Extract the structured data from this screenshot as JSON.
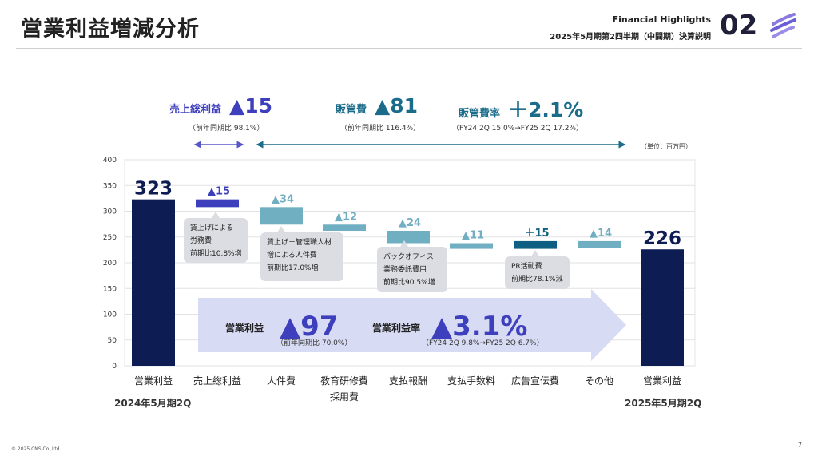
{
  "header": {
    "title": "営業利益増減分析",
    "en_label": "Financial Highlights",
    "jp_label": "2025年5月期第2四半期（中間期）決算説明",
    "section_number": "02"
  },
  "summary": {
    "gross_profit": {
      "label": "売上総利益",
      "value": "▲15",
      "sub": "（前年同期比 98.1%）",
      "color": "#3e3fbd"
    },
    "sga": {
      "label": "販管費",
      "value": "▲81",
      "sub": "（前年同期比 116.4%）",
      "color": "#1b6c8a"
    },
    "sga_ratio": {
      "label": "販管費率",
      "value": "＋2.1%",
      "sub": "（FY24 2Q 15.0%→FY25 2Q 17.2%）",
      "color": "#1b6c8a"
    },
    "unit": "（単位：百万円）"
  },
  "chart_data": {
    "type": "waterfall",
    "ylim": [
      0,
      400
    ],
    "yticks": [
      0,
      50,
      100,
      150,
      200,
      250,
      300,
      350,
      400
    ],
    "categories": [
      "営業利益",
      "売上総利益",
      "人件費",
      "教育研修費",
      "支払報酬",
      "支払手数料",
      "広告宣伝費",
      "その他",
      "営業利益"
    ],
    "category_sublabels": [
      "",
      "",
      "",
      "採用費",
      "",
      "",
      "",
      "",
      ""
    ],
    "steps": [
      {
        "category": "営業利益",
        "kind": "total",
        "start": 0,
        "end": 323,
        "label": "323",
        "color": "#0d1c52"
      },
      {
        "category": "売上総利益",
        "kind": "delta",
        "start": 323,
        "end": 308,
        "label": "▲15",
        "color": "#3e3fbd"
      },
      {
        "category": "人件費",
        "kind": "delta",
        "start": 308,
        "end": 274,
        "label": "▲34",
        "color": "#70aec2"
      },
      {
        "category": "教育研修費",
        "kind": "delta",
        "start": 274,
        "end": 262,
        "label": "▲12",
        "color": "#70aec2"
      },
      {
        "category": "支払報酬",
        "kind": "delta",
        "start": 262,
        "end": 238,
        "label": "▲24",
        "color": "#70aec2"
      },
      {
        "category": "支払手数料",
        "kind": "delta",
        "start": 238,
        "end": 227,
        "label": "▲11",
        "color": "#70aec2"
      },
      {
        "category": "広告宣伝費",
        "kind": "delta",
        "start": 227,
        "end": 242,
        "label": "＋15",
        "color": "#0f5f82"
      },
      {
        "category": "その他",
        "kind": "delta",
        "start": 242,
        "end": 228,
        "label": "▲14",
        "color": "#70aec2"
      },
      {
        "category": "営業利益",
        "kind": "total",
        "start": 0,
        "end": 226,
        "label": "226",
        "color": "#0d1c52"
      }
    ],
    "callouts": [
      "賃上げによる\n労務費\n前期比10.8%増",
      "賃上げ＋管理職人材\n増による人件費\n前期比17.0%増",
      "バックオフィス\n業務委託費用\n前期比90.5%増",
      "PR活動費\n前期比78.1%減"
    ],
    "period_labels": [
      "2024年5月期2Q",
      "2025年5月期2Q"
    ],
    "overlay": {
      "op_label": "営業利益",
      "op_value": "▲97",
      "op_sub": "（前年同期比 70.0%）",
      "ratio_label": "営業利益率",
      "ratio_value": "▲3.1%",
      "ratio_sub": "（FY24 2Q 9.8%→FY25 2Q 6.7%）"
    }
  },
  "footer": {
    "copyright": "© 2025 CNS Co.,Ltd.",
    "page_number": "7"
  }
}
